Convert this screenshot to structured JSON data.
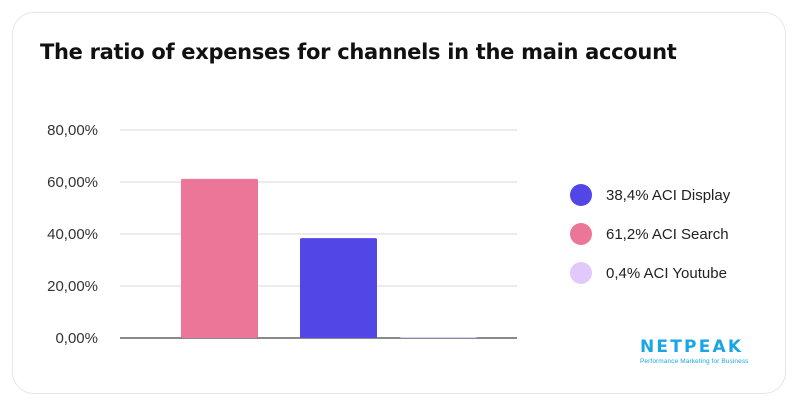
{
  "chart_data": {
    "type": "bar",
    "title": "The ratio of expenses for channels in the main account",
    "ylim": [
      0,
      80
    ],
    "y_ticks": [
      "0,00%",
      "20,00%",
      "40,00%",
      "60,00%",
      "80,00%"
    ],
    "y_tick_values": [
      0,
      20,
      40,
      60,
      80
    ],
    "grid": true,
    "legend_position": "right",
    "series": [
      {
        "legend_label": "61,2% ACI Search",
        "value": 61.2,
        "color": "#eb7697"
      },
      {
        "legend_label": "38,4% ACI Display",
        "value": 38.4,
        "color": "#5346e6"
      },
      {
        "legend_label": "0,4% ACI Youtube",
        "value": 0.4,
        "color": "#e2c9fb"
      }
    ],
    "legend": [
      {
        "label": "38,4% ACI Display",
        "color": "#5346e6"
      },
      {
        "label": "61,2% ACI Search",
        "color": "#eb7697"
      },
      {
        "label": "0,4% ACI Youtube",
        "color": "#e2c9fb"
      }
    ]
  },
  "logo": {
    "name": "NETPEAK",
    "tagline": "Performance Marketing for Business"
  }
}
